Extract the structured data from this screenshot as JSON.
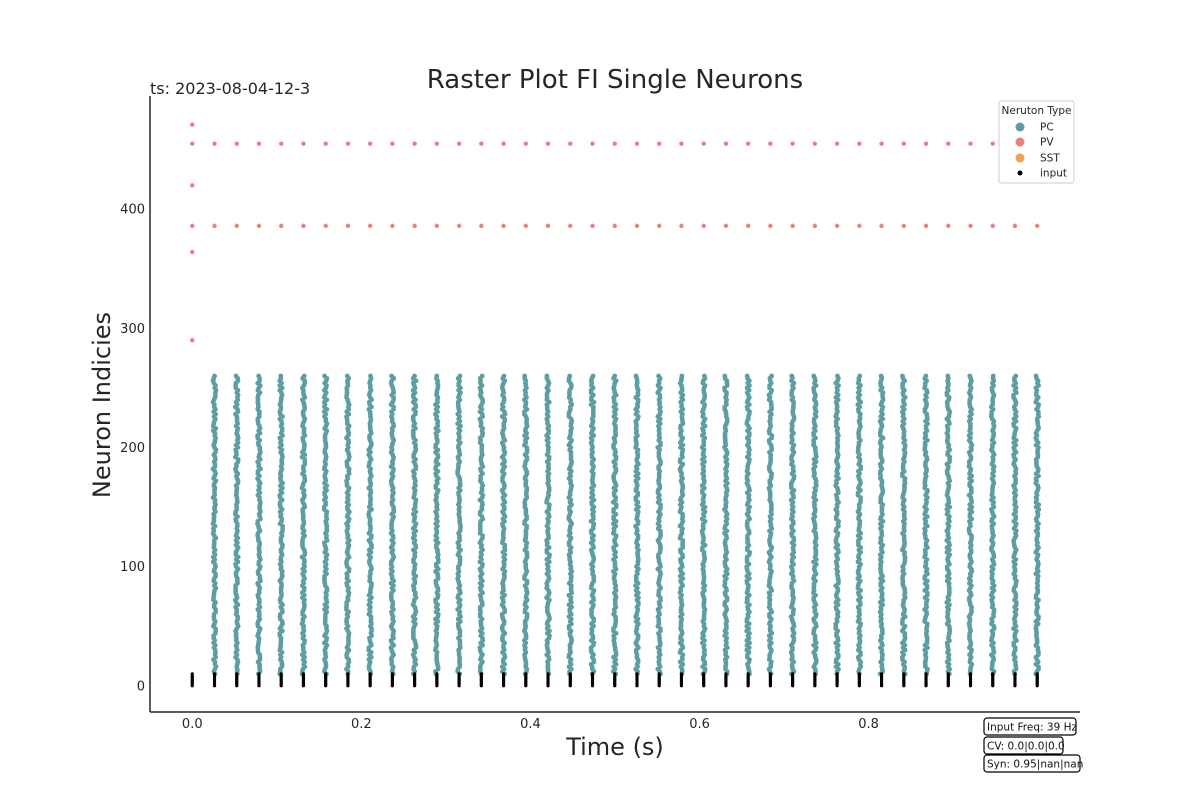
{
  "chart_data": {
    "type": "scatter",
    "title": "Raster Plot FI Single Neurons",
    "timestamp_label": "ts: 2023-08-04-12-3",
    "xlabel": "Time (s)",
    "ylabel": "Neuron Indicies",
    "xlim": [
      -0.05,
      1.05
    ],
    "ylim": [
      -22,
      495
    ],
    "xticks": [
      0.0,
      0.2,
      0.4,
      0.6,
      0.8
    ],
    "xtick_labels": [
      "0.0",
      "0.2",
      "0.4",
      "0.6",
      "0.8"
    ],
    "yticks": [
      0,
      100,
      200,
      300,
      400
    ],
    "ytick_labels": [
      "0",
      "100",
      "200",
      "300",
      "400"
    ],
    "grid": false,
    "legend": {
      "title": "Neruton Type",
      "placement": "top-right",
      "entries": [
        {
          "label": "PC",
          "color": "#5f9ea0"
        },
        {
          "label": "PV",
          "color": "#e9817a"
        },
        {
          "label": "SST",
          "color": "#f0a058"
        },
        {
          "label": "input",
          "color": "#000000"
        }
      ]
    },
    "info_boxes": [
      "Input Freq: 39 Hz",
      "CV: 0.0|0.0|0.0",
      "Syn: 0.95|nan|nan"
    ],
    "series": [
      {
        "name": "PC",
        "color": "#5f9ea0",
        "description_of_events": "each PC neuron (index 10–260) fires once per input cycle",
        "neuron_range": [
          10,
          260
        ],
        "spike_times": [
          0.0263,
          0.0526,
          0.0789,
          0.1052,
          0.1315,
          0.1578,
          0.1841,
          0.2104,
          0.2367,
          0.263,
          0.2893,
          0.3156,
          0.3419,
          0.3682,
          0.3945,
          0.4208,
          0.4471,
          0.4734,
          0.4997,
          0.526,
          0.5523,
          0.5786,
          0.6049,
          0.6312,
          0.6575,
          0.6838,
          0.7101,
          0.7364,
          0.7627,
          0.789,
          0.8153,
          0.8416,
          0.8679,
          0.8942,
          0.9205,
          0.9468,
          0.9731,
          0.9994
        ]
      },
      {
        "name": "PV",
        "color": "#e9817a",
        "rows": [
          {
            "neuron": 455,
            "spike_times": [
              0.0,
              0.0263,
              0.0526,
              0.0789,
              0.1052,
              0.1315,
              0.1578,
              0.1841,
              0.2104,
              0.2367,
              0.263,
              0.2893,
              0.3156,
              0.3419,
              0.3682,
              0.3945,
              0.4208,
              0.4471,
              0.4734,
              0.4997,
              0.526,
              0.5523,
              0.5786,
              0.6049,
              0.6312,
              0.6575,
              0.6838,
              0.7101,
              0.7364,
              0.7627,
              0.789,
              0.8153,
              0.8416,
              0.8679,
              0.8942,
              0.9205,
              0.9468,
              0.9731
            ]
          },
          {
            "neuron": 386,
            "spike_times": [
              0.0,
              0.0263,
              0.0526,
              0.0789,
              0.1052,
              0.1315,
              0.1578,
              0.1841,
              0.2104,
              0.2367,
              0.263,
              0.2893,
              0.3156,
              0.3419,
              0.3682,
              0.3945,
              0.4208,
              0.4471,
              0.4734,
              0.4997,
              0.526,
              0.5523,
              0.5786,
              0.6049,
              0.6312,
              0.6575,
              0.6838,
              0.7101,
              0.7364,
              0.7627,
              0.789,
              0.8153,
              0.8416,
              0.8679,
              0.8942,
              0.9205,
              0.9468,
              0.9731,
              0.9994
            ]
          },
          {
            "neuron": 471,
            "spike_times": [
              0.0
            ]
          },
          {
            "neuron": 420,
            "spike_times": [
              0.0
            ]
          },
          {
            "neuron": 364,
            "spike_times": [
              0.0
            ]
          },
          {
            "neuron": 290,
            "spike_times": [
              0.0
            ]
          }
        ]
      },
      {
        "name": "SST",
        "color": "#f0a058",
        "rows": []
      },
      {
        "name": "input",
        "color": "#000000",
        "neuron_range": [
          0,
          10
        ],
        "spike_times": [
          0.0,
          0.0263,
          0.0526,
          0.0789,
          0.1052,
          0.1315,
          0.1578,
          0.1841,
          0.2104,
          0.2367,
          0.263,
          0.2893,
          0.3156,
          0.3419,
          0.3682,
          0.3945,
          0.4208,
          0.4471,
          0.4734,
          0.4997,
          0.526,
          0.5523,
          0.5786,
          0.6049,
          0.6312,
          0.6575,
          0.6838,
          0.7101,
          0.7364,
          0.7627,
          0.789,
          0.8153,
          0.8416,
          0.8679,
          0.8942,
          0.9205,
          0.9468,
          0.9731,
          0.9994
        ]
      }
    ]
  }
}
